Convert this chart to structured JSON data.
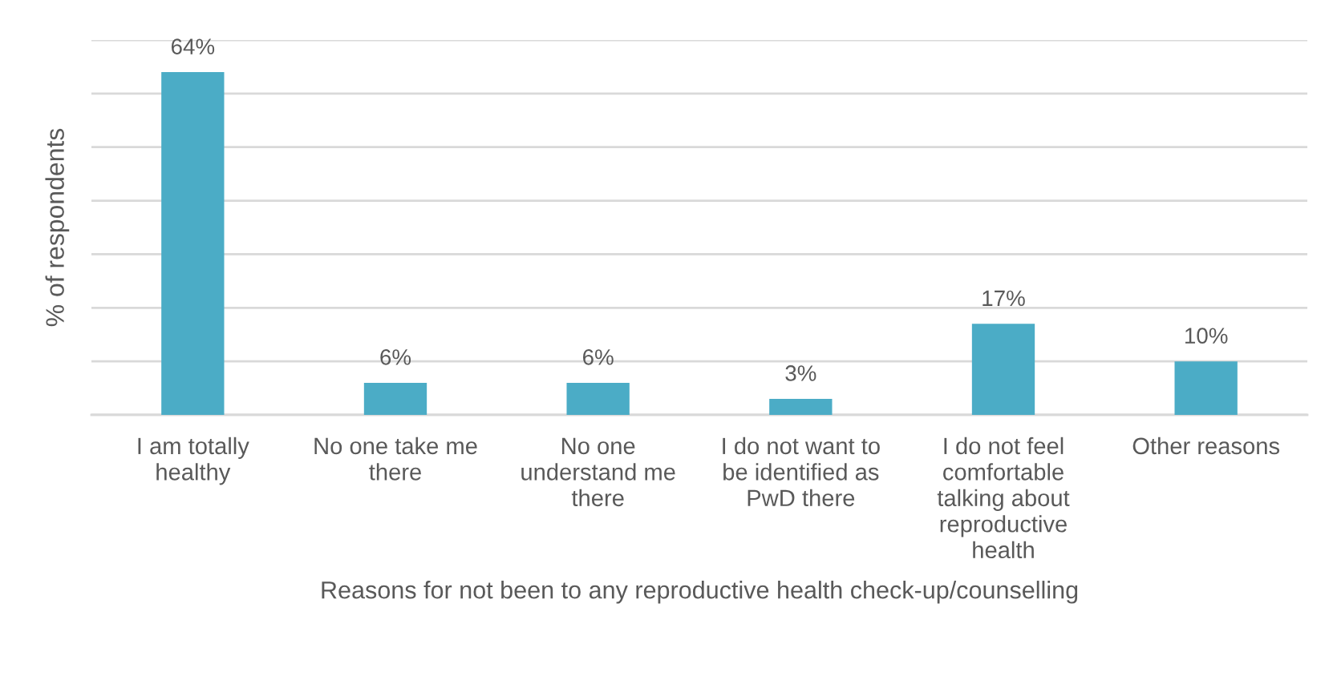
{
  "chart_data": {
    "type": "bar",
    "xlabel": "Reasons for not been to any reproductive health check-up/counselling",
    "ylabel": "% of respondents",
    "categories": [
      "I am totally\nhealthy",
      "No one take me\nthere",
      "No one\nunderstand me\nthere",
      "I do not want to\nbe identified as\nPwD there",
      "I do not feel\ncomfortable\ntalking about\nreproductive\nhealth",
      "Other reasons"
    ],
    "values": [
      64,
      6,
      6,
      3,
      17,
      10
    ],
    "value_labels": [
      "64%",
      "6%",
      "6%",
      "3%",
      "17%",
      "10%"
    ],
    "color": "#4bacc6",
    "ylim": [
      0,
      70
    ],
    "yticks": [
      {
        "value": 0,
        "label": null
      },
      {
        "value": 10,
        "label": null
      },
      {
        "value": 20,
        "label": null
      },
      {
        "value": 30,
        "label": null
      },
      {
        "value": 40,
        "label": null
      },
      {
        "value": 50,
        "label": null
      },
      {
        "value": 60,
        "label": null
      },
      {
        "value": 70,
        "label": null
      }
    ],
    "grid": "y",
    "tick_labels": "x"
  }
}
